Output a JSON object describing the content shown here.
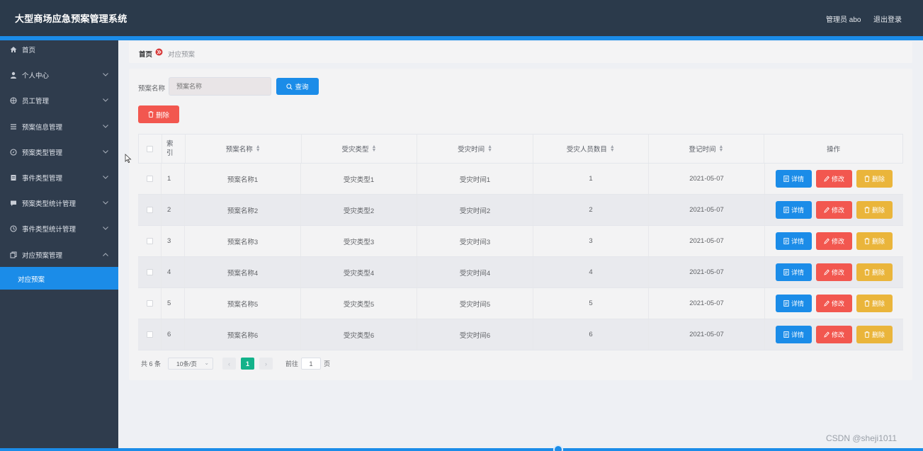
{
  "header": {
    "title": "大型商场应急预案管理系统",
    "user_label": "管理员 abo",
    "logout_label": "退出登录"
  },
  "sidebar": {
    "items": [
      {
        "label": "首页",
        "icon": "home-icon",
        "has_chevron": false
      },
      {
        "label": "个人中心",
        "icon": "user-icon",
        "has_chevron": true
      },
      {
        "label": "员工管理",
        "icon": "globe-icon",
        "has_chevron": true
      },
      {
        "label": "预案信息管理",
        "icon": "list-icon",
        "has_chevron": true
      },
      {
        "label": "预案类型管理",
        "icon": "compass-icon",
        "has_chevron": true
      },
      {
        "label": "事件类型管理",
        "icon": "document-icon",
        "has_chevron": true
      },
      {
        "label": "预案类型统计管理",
        "icon": "chat-icon",
        "has_chevron": true
      },
      {
        "label": "事件类型统计管理",
        "icon": "clock-icon",
        "has_chevron": true
      },
      {
        "label": "对应预案管理",
        "icon": "copy-icon",
        "has_chevron": true,
        "expanded": true
      }
    ],
    "active_sub_item": "对应预案"
  },
  "breadcrumb": {
    "home": "首页",
    "current": "对应预案"
  },
  "search": {
    "label": "预案名称",
    "placeholder": "预案名称",
    "query_button": "查询"
  },
  "toolbar": {
    "delete_label": "删除"
  },
  "table": {
    "headers": {
      "index": "索引",
      "name": "预案名称",
      "type": "受灾类型",
      "time": "受灾时间",
      "count": "受灾人员数目",
      "date": "登记时间",
      "ops": "操作"
    },
    "rows": [
      {
        "index": "1",
        "name": "预案名称1",
        "type": "受灾类型1",
        "time": "受灾时间1",
        "count": "1",
        "date": "2021-05-07"
      },
      {
        "index": "2",
        "name": "预案名称2",
        "type": "受灾类型2",
        "time": "受灾时间2",
        "count": "2",
        "date": "2021-05-07"
      },
      {
        "index": "3",
        "name": "预案名称3",
        "type": "受灾类型3",
        "time": "受灾时间3",
        "count": "3",
        "date": "2021-05-07"
      },
      {
        "index": "4",
        "name": "预案名称4",
        "type": "受灾类型4",
        "time": "受灾时间4",
        "count": "4",
        "date": "2021-05-07"
      },
      {
        "index": "5",
        "name": "预案名称5",
        "type": "受灾类型5",
        "time": "受灾时间5",
        "count": "5",
        "date": "2021-05-07"
      },
      {
        "index": "6",
        "name": "预案名称6",
        "type": "受灾类型6",
        "time": "受灾时间6",
        "count": "6",
        "date": "2021-05-07"
      }
    ],
    "op_labels": {
      "detail": "详情",
      "edit": "修改",
      "delete": "删除"
    }
  },
  "pagination": {
    "total": "共 6 条",
    "page_size": "10条/页",
    "current_page": "1",
    "goto_label": "前往",
    "goto_value": "1",
    "page_suffix": "页"
  },
  "watermark": "CSDN @sheji1011",
  "colors": {
    "header_bg": "#2b3a4b",
    "sidebar_bg": "#2f3c4d",
    "primary": "#1b8ce8",
    "danger": "#f2574f",
    "warning": "#eab53b",
    "pager_active": "#13b28a"
  }
}
